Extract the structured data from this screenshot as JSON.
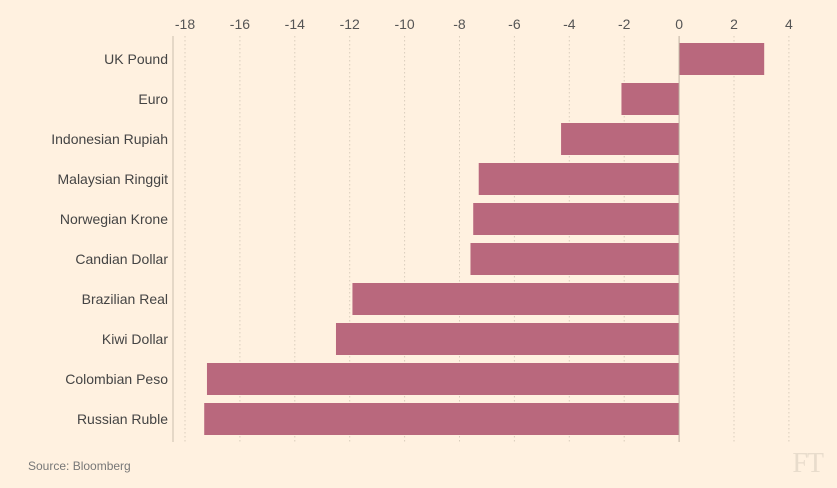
{
  "chart_data": {
    "type": "bar",
    "orientation": "horizontal",
    "categories": [
      "UK Pound",
      "Euro",
      "Indonesian Rupiah",
      "Malaysian Ringgit",
      "Norwegian Krone",
      "Candian Dollar",
      "Brazilian Real",
      "Kiwi Dollar",
      "Colombian Peso",
      "Russian Ruble"
    ],
    "values": [
      3.1,
      -2.1,
      -4.3,
      -7.3,
      -7.5,
      -7.6,
      -11.9,
      -12.5,
      -17.2,
      -17.3
    ],
    "xticks": [
      "-18",
      "-16",
      "-14",
      "-12",
      "-10",
      "-8",
      "-6",
      "-4",
      "-2",
      "0",
      "2",
      "4"
    ],
    "xlim": [
      -18,
      4
    ],
    "grid": true,
    "bar_color": "#b9687d"
  },
  "footer": {
    "source": "Source: Bloomberg",
    "brand": "FT"
  }
}
